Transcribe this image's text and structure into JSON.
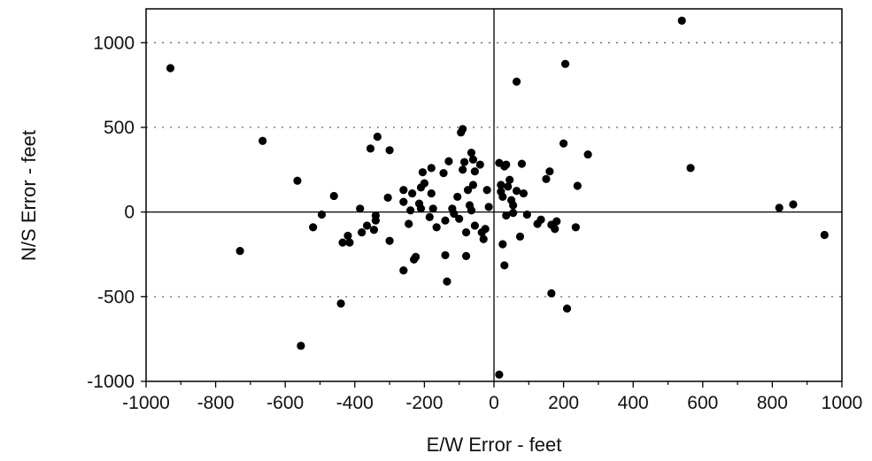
{
  "chart_data": {
    "type": "scatter",
    "title": "",
    "xlabel": "E/W Error - feet",
    "ylabel": "N/S Error - feet",
    "xlim": [
      -1000,
      1000
    ],
    "ylim": [
      -1000,
      1200
    ],
    "xticks": [
      -1000,
      -800,
      -600,
      -400,
      -200,
      0,
      200,
      400,
      600,
      800,
      1000
    ],
    "yticks": [
      -1000,
      -500,
      0,
      500,
      1000
    ],
    "grid": "horizontal dotted",
    "legend": "none",
    "marker_color": "#000000",
    "points": [
      {
        "x": -930,
        "y": 850
      },
      {
        "x": -730,
        "y": -230
      },
      {
        "x": -665,
        "y": 420
      },
      {
        "x": -565,
        "y": 185
      },
      {
        "x": -555,
        "y": -790
      },
      {
        "x": -520,
        "y": -90
      },
      {
        "x": -495,
        "y": -15
      },
      {
        "x": -460,
        "y": 95
      },
      {
        "x": -440,
        "y": -540
      },
      {
        "x": -435,
        "y": -180
      },
      {
        "x": -420,
        "y": -140
      },
      {
        "x": -415,
        "y": -180
      },
      {
        "x": -385,
        "y": 20
      },
      {
        "x": -380,
        "y": -120
      },
      {
        "x": -365,
        "y": -80
      },
      {
        "x": -355,
        "y": 375
      },
      {
        "x": -345,
        "y": -105
      },
      {
        "x": -340,
        "y": -20
      },
      {
        "x": -340,
        "y": -50
      },
      {
        "x": -335,
        "y": 445
      },
      {
        "x": -305,
        "y": 85
      },
      {
        "x": -300,
        "y": 365
      },
      {
        "x": -300,
        "y": -170
      },
      {
        "x": -260,
        "y": 130
      },
      {
        "x": -260,
        "y": 60
      },
      {
        "x": -260,
        "y": -345
      },
      {
        "x": -245,
        "y": -70
      },
      {
        "x": -240,
        "y": 10
      },
      {
        "x": -235,
        "y": 110
      },
      {
        "x": -230,
        "y": -280
      },
      {
        "x": -225,
        "y": -265
      },
      {
        "x": -215,
        "y": 50
      },
      {
        "x": -210,
        "y": 20
      },
      {
        "x": -210,
        "y": 145
      },
      {
        "x": -205,
        "y": 235
      },
      {
        "x": -200,
        "y": 170
      },
      {
        "x": -185,
        "y": -30
      },
      {
        "x": -180,
        "y": 260
      },
      {
        "x": -180,
        "y": 110
      },
      {
        "x": -175,
        "y": 20
      },
      {
        "x": -165,
        "y": -90
      },
      {
        "x": -145,
        "y": 230
      },
      {
        "x": -140,
        "y": -50
      },
      {
        "x": -140,
        "y": -255
      },
      {
        "x": -135,
        "y": -410
      },
      {
        "x": -130,
        "y": 300
      },
      {
        "x": -120,
        "y": 20
      },
      {
        "x": -115,
        "y": -10
      },
      {
        "x": -105,
        "y": 90
      },
      {
        "x": -100,
        "y": -40
      },
      {
        "x": -95,
        "y": 470
      },
      {
        "x": -90,
        "y": 490
      },
      {
        "x": -90,
        "y": 250
      },
      {
        "x": -85,
        "y": 295
      },
      {
        "x": -80,
        "y": -120
      },
      {
        "x": -80,
        "y": -260
      },
      {
        "x": -75,
        "y": 130
      },
      {
        "x": -70,
        "y": 40
      },
      {
        "x": -65,
        "y": 10
      },
      {
        "x": -65,
        "y": 350
      },
      {
        "x": -60,
        "y": 160
      },
      {
        "x": -60,
        "y": 310
      },
      {
        "x": -55,
        "y": 240
      },
      {
        "x": -55,
        "y": -80
      },
      {
        "x": -40,
        "y": 280
      },
      {
        "x": -35,
        "y": -120
      },
      {
        "x": -30,
        "y": -160
      },
      {
        "x": -25,
        "y": -100
      },
      {
        "x": -20,
        "y": 130
      },
      {
        "x": -15,
        "y": 30
      },
      {
        "x": 15,
        "y": -960
      },
      {
        "x": 15,
        "y": 290
      },
      {
        "x": 20,
        "y": 160
      },
      {
        "x": 20,
        "y": 120
      },
      {
        "x": 25,
        "y": 90
      },
      {
        "x": 25,
        "y": -190
      },
      {
        "x": 30,
        "y": 270
      },
      {
        "x": 30,
        "y": -315
      },
      {
        "x": 35,
        "y": -20
      },
      {
        "x": 35,
        "y": 280
      },
      {
        "x": 40,
        "y": 150
      },
      {
        "x": 45,
        "y": 190
      },
      {
        "x": 50,
        "y": 70
      },
      {
        "x": 55,
        "y": 40
      },
      {
        "x": 55,
        "y": -5
      },
      {
        "x": 65,
        "y": 125
      },
      {
        "x": 65,
        "y": 770
      },
      {
        "x": 75,
        "y": -145
      },
      {
        "x": 80,
        "y": 285
      },
      {
        "x": 85,
        "y": 110
      },
      {
        "x": 95,
        "y": -15
      },
      {
        "x": 125,
        "y": -70
      },
      {
        "x": 135,
        "y": -45
      },
      {
        "x": 150,
        "y": 195
      },
      {
        "x": 160,
        "y": 240
      },
      {
        "x": 165,
        "y": -480
      },
      {
        "x": 165,
        "y": -75
      },
      {
        "x": 175,
        "y": -100
      },
      {
        "x": 180,
        "y": -55
      },
      {
        "x": 200,
        "y": 405
      },
      {
        "x": 205,
        "y": 875
      },
      {
        "x": 210,
        "y": -570
      },
      {
        "x": 235,
        "y": -90
      },
      {
        "x": 240,
        "y": 155
      },
      {
        "x": 270,
        "y": 340
      },
      {
        "x": 540,
        "y": 1130
      },
      {
        "x": 565,
        "y": 260
      },
      {
        "x": 820,
        "y": 25
      },
      {
        "x": 860,
        "y": 45
      },
      {
        "x": 950,
        "y": -135
      }
    ]
  }
}
